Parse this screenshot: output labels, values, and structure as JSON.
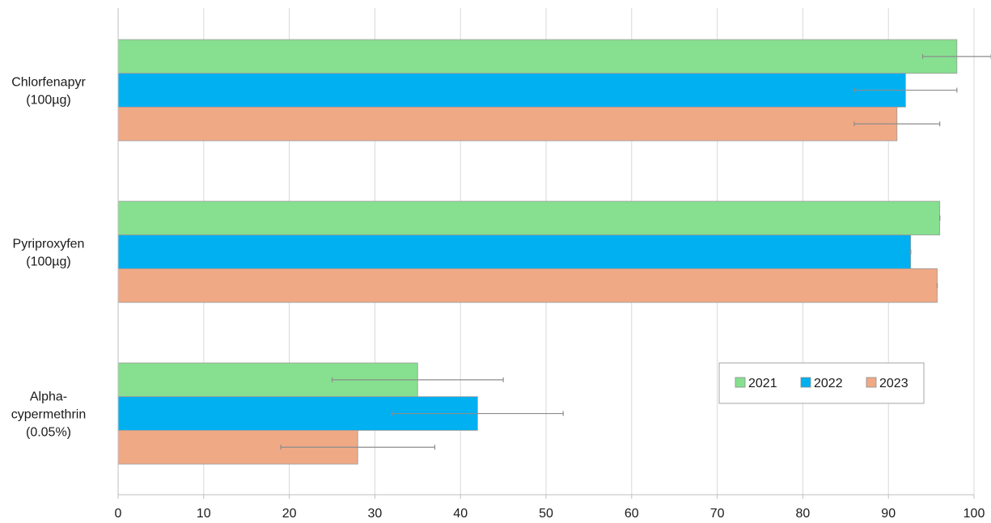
{
  "chart_data": {
    "type": "bar",
    "orientation": "horizontal",
    "categories": [
      [
        "Chlorfenapyr",
        "(100µg)"
      ],
      [
        "Pyriproxyfen",
        "(100µg)"
      ],
      [
        "Alpha-",
        "cypermethrin",
        "(0.05%)"
      ]
    ],
    "series": [
      {
        "name": "2021",
        "color": "#86e08f",
        "values": [
          98,
          96,
          35
        ],
        "error": [
          4,
          0,
          10
        ]
      },
      {
        "name": "2022",
        "color": "#00b0f0",
        "values": [
          92,
          92.6,
          42
        ],
        "error": [
          6,
          0,
          10
        ]
      },
      {
        "name": "2023",
        "color": "#f0a985",
        "values": [
          91,
          95.7,
          28
        ],
        "error": [
          5,
          0,
          9
        ]
      }
    ],
    "xlim": [
      0,
      100
    ],
    "xticks": [
      0,
      10,
      20,
      30,
      40,
      50,
      60,
      70,
      80,
      90,
      100
    ],
    "grid": "vertical",
    "legend_position": "bottom-right",
    "title": "",
    "xlabel": "",
    "ylabel": ""
  }
}
